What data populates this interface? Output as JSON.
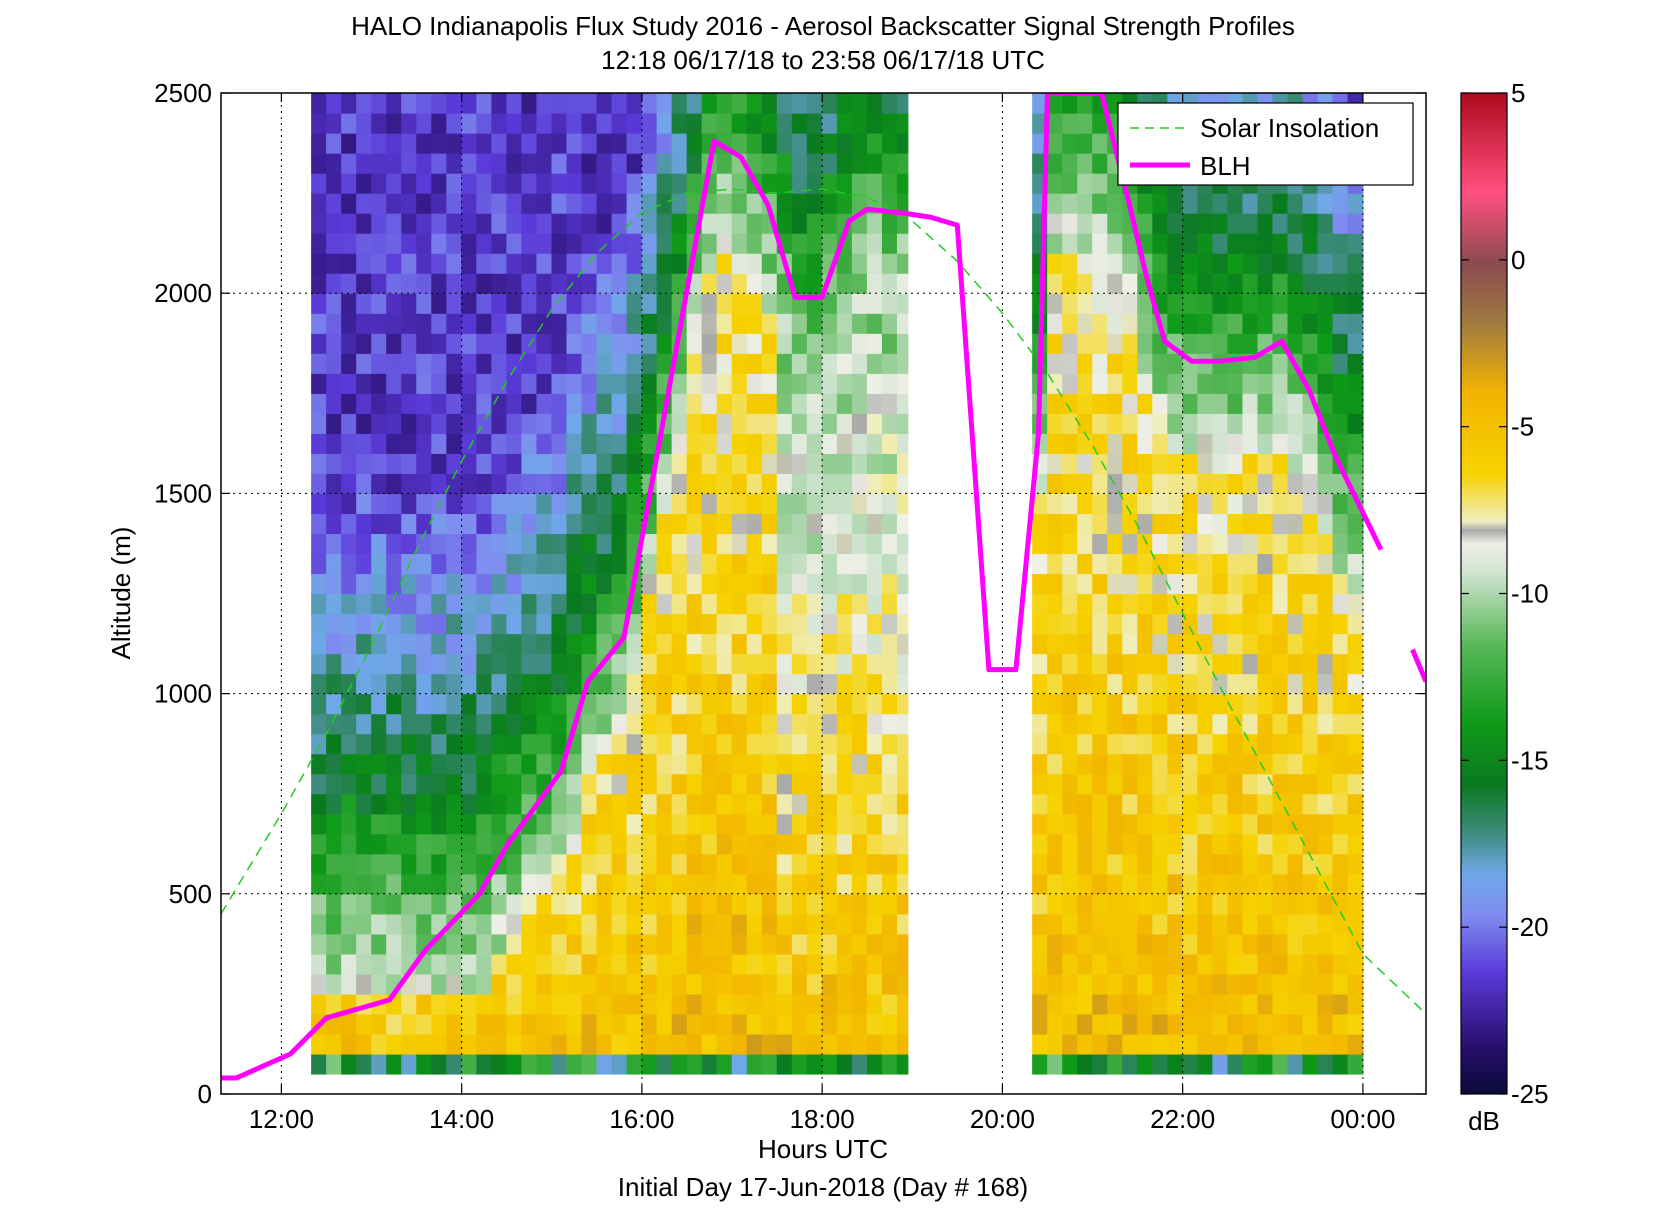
{
  "chart_data": {
    "type": "heatmap",
    "title": "HALO Indianapolis Flux Study 2016 - Aerosol Backscatter Signal Strength Profiles",
    "subtitle": "12:18 06/17/18 to 23:58 06/17/18  UTC",
    "xlabel": "Hours UTC",
    "xlabel2": "Initial Day 17-Jun-2018 (Day # 168)",
    "ylabel": "Altitude (m)",
    "xlim": [
      11.33,
      24.7
    ],
    "ylim": [
      0,
      2500
    ],
    "x_ticks": [
      12,
      14,
      16,
      18,
      20,
      22,
      24
    ],
    "x_tick_labels": [
      "12:00",
      "14:00",
      "16:00",
      "18:00",
      "20:00",
      "22:00",
      "00:00"
    ],
    "y_ticks": [
      0,
      500,
      1000,
      1500,
      2000,
      2500
    ],
    "y_tick_labels": [
      "0",
      "500",
      "1000",
      "1500",
      "2000",
      "2500"
    ],
    "grid": true,
    "colorbar": {
      "label": "dB",
      "range": [
        -25,
        5
      ],
      "ticks": [
        5,
        0,
        -5,
        -10,
        -15,
        -20,
        -25
      ],
      "tick_labels": [
        "5",
        "0",
        "-5",
        "-10",
        "-15",
        "-20",
        "-25"
      ]
    },
    "legend": {
      "placement": "top-right",
      "entries": [
        {
          "name": "Solar Insolation",
          "color": "#22cc22",
          "style": "dashed"
        },
        {
          "name": "BLH",
          "color": "#ff00ff",
          "style": "solid"
        }
      ]
    },
    "data_segments": [
      {
        "t_start": 12.33,
        "t_end": 18.95
      },
      {
        "t_start": 20.33,
        "t_end": 24.0
      }
    ],
    "altitude_range": [
      50,
      2500
    ],
    "series": [
      {
        "name": "BLH",
        "color": "#ff00ff",
        "x": [
          11.33,
          11.5,
          12.1,
          12.5,
          13.2,
          13.6,
          14.2,
          14.5,
          15.1,
          15.4,
          15.8,
          16.8,
          17.1,
          17.4,
          17.7,
          18.0,
          18.3,
          18.5,
          18.9,
          19.2,
          19.5,
          19.85,
          20.15,
          20.4,
          20.5,
          21.1,
          21.4,
          21.6,
          21.8,
          22.1,
          22.4,
          22.8,
          23.1,
          23.4,
          23.7,
          24.2
        ],
        "y": [
          40,
          40,
          100,
          190,
          235,
          360,
          500,
          620,
          805,
          1030,
          1140,
          2380,
          2340,
          2220,
          1990,
          1990,
          2180,
          2210,
          2200,
          2190,
          2170,
          1060,
          1060,
          1650,
          2500,
          2500,
          2230,
          2040,
          1880,
          1830,
          1830,
          1840,
          1880,
          1760,
          1590,
          1360
        ]
      },
      {
        "name": "BLH (extension)",
        "x": [
          24.55,
          24.7
        ],
        "y": [
          1110,
          1030
        ]
      },
      {
        "name": "Solar Insolation",
        "color": "#22cc22",
        "x": [
          11.33,
          12.0,
          12.5,
          13.0,
          13.5,
          14.0,
          14.5,
          15.0,
          15.5,
          16.0,
          16.5,
          17.0,
          17.5,
          18.0,
          18.5,
          19.0,
          19.5,
          20.0,
          20.5,
          21.0,
          21.5,
          22.0,
          22.5,
          23.0,
          23.5,
          24.0,
          24.7
        ],
        "y": [
          450,
          700,
          900,
          1120,
          1360,
          1580,
          1780,
          1960,
          2100,
          2200,
          2250,
          2260,
          2250,
          2260,
          2240,
          2180,
          2080,
          1950,
          1800,
          1620,
          1420,
          1200,
          980,
          770,
          560,
          350,
          200
        ]
      }
    ]
  }
}
